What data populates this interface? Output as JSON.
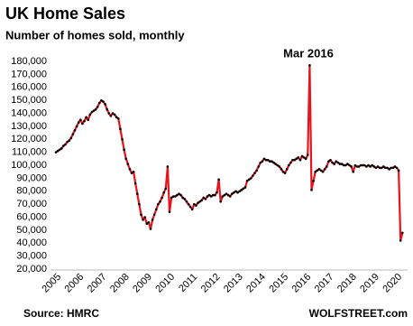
{
  "chart_data": {
    "type": "line",
    "title": "UK Home Sales",
    "subtitle": "Number of homes sold, monthly",
    "annotation": "Mar 2016",
    "source": "Source: HMRC",
    "credit": "WOLFSTREET.com",
    "categories": [
      "2005",
      null,
      null,
      null,
      null,
      null,
      null,
      null,
      null,
      null,
      null,
      null,
      "2006",
      null,
      null,
      null,
      null,
      null,
      null,
      null,
      null,
      null,
      null,
      null,
      "2007",
      null,
      null,
      null,
      null,
      null,
      null,
      null,
      null,
      null,
      null,
      null,
      "2008",
      null,
      null,
      null,
      null,
      null,
      null,
      null,
      null,
      null,
      null,
      null,
      "2009",
      null,
      null,
      null,
      null,
      null,
      null,
      null,
      null,
      null,
      null,
      null,
      "2010",
      null,
      null,
      null,
      null,
      null,
      null,
      null,
      null,
      null,
      null,
      null,
      "2011",
      null,
      null,
      null,
      null,
      null,
      null,
      null,
      null,
      null,
      null,
      null,
      "2012",
      null,
      null,
      null,
      null,
      null,
      null,
      null,
      null,
      null,
      null,
      null,
      "2013",
      null,
      null,
      null,
      null,
      null,
      null,
      null,
      null,
      null,
      null,
      null,
      "2014",
      null,
      null,
      null,
      null,
      null,
      null,
      null,
      null,
      null,
      null,
      null,
      "2015",
      null,
      null,
      null,
      null,
      null,
      null,
      null,
      null,
      null,
      null,
      null,
      "2016",
      null,
      null,
      null,
      null,
      null,
      null,
      null,
      null,
      null,
      null,
      null,
      "2017",
      null,
      null,
      null,
      null,
      null,
      null,
      null,
      null,
      null,
      null,
      null,
      "2018",
      null,
      null,
      null,
      null,
      null,
      null,
      null,
      null,
      null,
      null,
      null,
      "2019",
      null,
      null,
      null,
      null,
      null,
      null,
      null,
      null,
      null,
      null,
      null,
      "2020",
      null,
      null,
      null
    ],
    "series": [
      {
        "color": "#e8141b",
        "marker_color": "#000000",
        "values": [
          110000,
          111000,
          112000,
          113000,
          115000,
          116000,
          118000,
          119000,
          121000,
          124000,
          127000,
          130000,
          133000,
          135000,
          132000,
          134000,
          137000,
          135000,
          139000,
          141000,
          142000,
          143000,
          145000,
          148000,
          150000,
          149000,
          147000,
          143000,
          140000,
          138000,
          140000,
          139000,
          137000,
          136000,
          128000,
          120000,
          112000,
          105000,
          101000,
          97000,
          94000,
          95000,
          86000,
          78000,
          70000,
          62000,
          58000,
          60000,
          55000,
          56000,
          51000,
          58000,
          62000,
          66000,
          70000,
          72000,
          75000,
          79000,
          82000,
          99000,
          64000,
          75000,
          76000,
          76000,
          77000,
          78000,
          77000,
          75000,
          74000,
          72000,
          70000,
          68000,
          66000,
          70000,
          69000,
          71000,
          72000,
          73000,
          75000,
          74000,
          76000,
          77000,
          76000,
          77000,
          77000,
          79000,
          89000,
          72000,
          76000,
          77000,
          78000,
          77000,
          76000,
          78000,
          79000,
          80000,
          79000,
          80000,
          81000,
          82000,
          83000,
          88000,
          89000,
          90000,
          92000,
          94000,
          96000,
          99000,
          102000,
          103000,
          105000,
          104000,
          104000,
          103000,
          103000,
          102000,
          101000,
          100000,
          99000,
          97000,
          95000,
          94000,
          97000,
          100000,
          102000,
          104000,
          104000,
          105000,
          106000,
          104000,
          107000,
          106000,
          105000,
          108000,
          177000,
          81000,
          88000,
          95000,
          96000,
          97000,
          96000,
          95000,
          97000,
          99000,
          103000,
          104000,
          102000,
          101000,
          103000,
          102000,
          101000,
          101000,
          100000,
          100000,
          101000,
          100000,
          99000,
          95000,
          100000,
          99000,
          99000,
          100000,
          100000,
          100000,
          99000,
          100000,
          99000,
          100000,
          99000,
          98000,
          99000,
          98000,
          98000,
          99000,
          98000,
          98000,
          97000,
          98000,
          98000,
          99000,
          98000,
          96000,
          42000,
          48000
        ]
      }
    ],
    "ylim": [
      20000,
      180000
    ],
    "yticks": [
      {
        "value": 20000,
        "label": "20,000"
      },
      {
        "value": 30000,
        "label": "30,000"
      },
      {
        "value": 40000,
        "label": "40,000"
      },
      {
        "value": 50000,
        "label": "50,000"
      },
      {
        "value": 60000,
        "label": "60,000"
      },
      {
        "value": 70000,
        "label": "70,000"
      },
      {
        "value": 80000,
        "label": "80,000"
      },
      {
        "value": 90000,
        "label": "90,000"
      },
      {
        "value": 100000,
        "label": "100,000"
      },
      {
        "value": 110000,
        "label": "110,000"
      },
      {
        "value": 120000,
        "label": "120,000"
      },
      {
        "value": 130000,
        "label": "130,000"
      },
      {
        "value": 140000,
        "label": "140,000"
      },
      {
        "value": 150000,
        "label": "150,000"
      },
      {
        "value": 160000,
        "label": "160,000"
      },
      {
        "value": 170000,
        "label": "170,000"
      },
      {
        "value": 180000,
        "label": "180,000"
      }
    ],
    "grid": false
  }
}
